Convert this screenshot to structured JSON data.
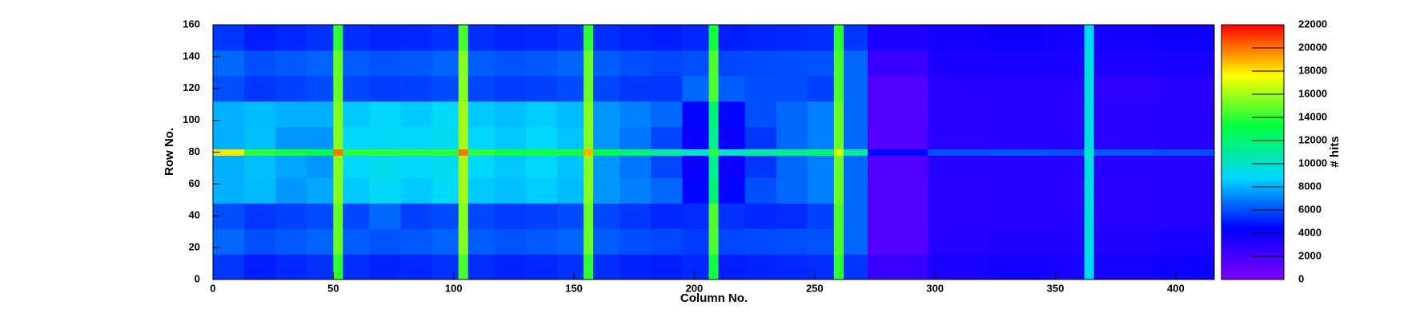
{
  "chart_data": {
    "type": "heatmap",
    "xlabel": "Column No.",
    "ylabel": "Row No.",
    "zlabel": "# hits",
    "xlim": [
      0,
      416
    ],
    "ylim": [
      0,
      160
    ],
    "zlim": [
      0,
      22000
    ],
    "xticks": [
      0,
      50,
      100,
      150,
      200,
      250,
      300,
      350,
      400
    ],
    "yticks": [
      0,
      20,
      40,
      60,
      80,
      100,
      120,
      140,
      160
    ],
    "zticks": [
      0,
      2000,
      4000,
      6000,
      8000,
      10000,
      12000,
      14000,
      16000,
      18000,
      20000,
      22000
    ],
    "colormap": [
      "#7f00ff",
      "#0000ff",
      "#00d8ff",
      "#00ff40",
      "#ffff00",
      "#ff0000"
    ],
    "xbins": [
      0,
      13,
      26,
      39,
      50,
      54,
      65,
      78,
      91,
      102,
      106,
      117,
      130,
      143,
      154,
      158,
      169,
      182,
      195,
      206,
      210,
      221,
      234,
      247,
      258,
      262,
      272,
      297,
      322,
      347,
      362,
      366,
      391,
      416
    ],
    "ybins": [
      0,
      16,
      32,
      48,
      64,
      78,
      82,
      96,
      112,
      128,
      144,
      160
    ],
    "z": [
      [
        5500,
        5000,
        5200,
        5400,
        14000,
        5300,
        5100,
        5200,
        5400,
        14500,
        5300,
        5100,
        5200,
        5400,
        14000,
        5300,
        5100,
        5000,
        5200,
        13500,
        5000,
        5100,
        5200,
        5300,
        14000,
        5500,
        2500,
        3500,
        3800,
        3600,
        9000,
        3700,
        3900
      ],
      [
        6500,
        6000,
        6200,
        6400,
        15000,
        6300,
        6100,
        6200,
        6400,
        15500,
        6300,
        6100,
        6200,
        6400,
        15000,
        6300,
        6000,
        5800,
        5600,
        14500,
        5800,
        5900,
        6000,
        6100,
        14500,
        6500,
        1500,
        3200,
        3400,
        3300,
        9500,
        3300,
        3500
      ],
      [
        6000,
        5500,
        5700,
        5900,
        15000,
        5800,
        6500,
        5700,
        5900,
        15500,
        5800,
        5600,
        5700,
        5900,
        15000,
        5800,
        5500,
        5200,
        5300,
        14500,
        5400,
        5200,
        5300,
        5700,
        14500,
        6500,
        1500,
        3000,
        3200,
        3100,
        9500,
        3000,
        3200
      ],
      [
        8000,
        8200,
        7500,
        7800,
        15500,
        8500,
        9000,
        8500,
        9000,
        16000,
        8500,
        8300,
        8600,
        8200,
        15500,
        7500,
        7000,
        6500,
        4500,
        12000,
        4500,
        6000,
        6500,
        7000,
        15000,
        6500,
        1500,
        3000,
        3100,
        3000,
        9500,
        3000,
        3100
      ],
      [
        8000,
        8300,
        7800,
        7500,
        15500,
        8800,
        9200,
        8800,
        9200,
        16000,
        8800,
        8500,
        8800,
        8400,
        15500,
        7500,
        6800,
        5800,
        4000,
        11500,
        4000,
        5500,
        6500,
        7000,
        15000,
        6500,
        1600,
        3100,
        3200,
        3200,
        9500,
        3100,
        3200
      ],
      [
        18000,
        14000,
        13500,
        13000,
        20000,
        14000,
        14000,
        14000,
        14000,
        20000,
        14000,
        13500,
        13500,
        13500,
        19000,
        13000,
        12000,
        11000,
        10000,
        14000,
        10000,
        11000,
        11500,
        12000,
        17000,
        11000,
        4500,
        6000,
        6200,
        6000,
        10000,
        6200,
        6000
      ],
      [
        8000,
        8300,
        7500,
        7500,
        15500,
        8800,
        9000,
        8800,
        9200,
        16000,
        8800,
        8500,
        8800,
        8400,
        15500,
        7500,
        6800,
        5800,
        4000,
        11500,
        4000,
        5500,
        6500,
        7000,
        15000,
        6500,
        1600,
        3000,
        3100,
        3100,
        9500,
        3000,
        3100
      ],
      [
        8000,
        8200,
        8000,
        8000,
        15500,
        8500,
        8800,
        8500,
        9000,
        16000,
        8500,
        8300,
        8600,
        8200,
        15500,
        7500,
        7000,
        6500,
        4500,
        12000,
        4500,
        6000,
        6500,
        7000,
        15000,
        6500,
        1500,
        3000,
        3100,
        3000,
        9500,
        3000,
        3100
      ],
      [
        6000,
        5500,
        5700,
        5900,
        15000,
        5800,
        5600,
        5700,
        5900,
        15500,
        5800,
        5600,
        5700,
        5900,
        15000,
        5800,
        5500,
        5500,
        6500,
        14500,
        6300,
        6000,
        6000,
        5700,
        14500,
        6500,
        1500,
        3000,
        3100,
        3000,
        9500,
        2800,
        3000
      ],
      [
        6500,
        6000,
        6200,
        6400,
        15000,
        6300,
        6100,
        6200,
        6400,
        15500,
        6300,
        6100,
        6200,
        6400,
        15000,
        6300,
        6000,
        5800,
        6000,
        14500,
        5800,
        5900,
        6000,
        6100,
        14500,
        6500,
        2500,
        3500,
        3600,
        3500,
        9500,
        3500,
        3600
      ],
      [
        5500,
        5000,
        5200,
        5400,
        14000,
        5300,
        5100,
        5200,
        5400,
        14500,
        5300,
        5100,
        5200,
        5400,
        14000,
        5300,
        5100,
        5000,
        5200,
        13500,
        5000,
        5100,
        5200,
        5300,
        14000,
        5500,
        3500,
        3800,
        3900,
        3800,
        9000,
        3800,
        3900
      ]
    ]
  }
}
